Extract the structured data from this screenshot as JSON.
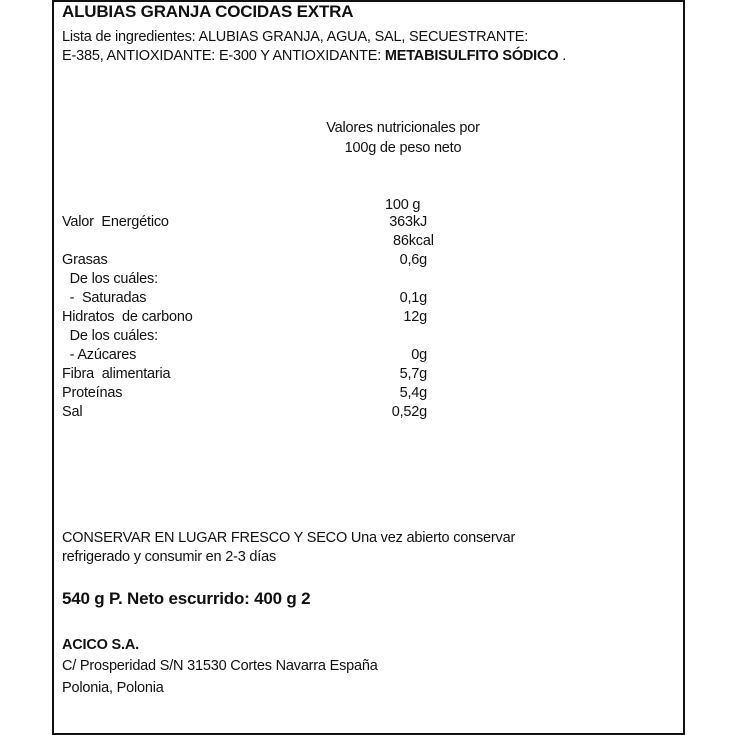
{
  "title": "ALUBIAS GRANJA COCIDAS EXTRA",
  "ingredients": {
    "line1": "Lista de ingredientes: ALUBIAS GRANJA, AGUA, SAL, SECUESTRANTE:",
    "line2_prefix": "E-385, ANTIOXIDANTE: E-300 Y ANTIOXIDANTE: ",
    "line2_bold": "METABISULFITO SÓDICO",
    "line2_suffix": " ."
  },
  "nutrition": {
    "header_line1": "Valores nutricionales por",
    "header_line2": "100g de peso neto",
    "column_header": "100 g",
    "rows": [
      {
        "label": "Valor  Energético",
        "value": "363kJ"
      },
      {
        "label": "",
        "value": "86kcal"
      },
      {
        "label": "Grasas",
        "value": "0,6g"
      },
      {
        "label": "  De los cuáles:",
        "value": ""
      },
      {
        "label": "  -  Saturadas",
        "value": "0,1g"
      },
      {
        "label": "Hidratos  de carbono",
        "value": "12g"
      },
      {
        "label": "  De los cuáles:",
        "value": ""
      },
      {
        "label": "  - Azúcares",
        "value": "0g"
      },
      {
        "label": "Fibra  alimentaria",
        "value": "5,7g"
      },
      {
        "label": "Proteínas",
        "value": "5,4g"
      },
      {
        "label": "Sal",
        "value": "0,52g"
      }
    ]
  },
  "storage": {
    "line1": "CONSERVAR EN LUGAR FRESCO Y SECO Una vez abierto conservar",
    "line2": "refrigerado y consumir en 2-3 días"
  },
  "weight": "540 g  P. Neto escurrido: 400 g  2",
  "company": {
    "name": "ACICO S.A.",
    "address": "C/ Prosperidad S/N 31530 Cortes Navarra España",
    "origin": "Polonia,  Polonia"
  }
}
